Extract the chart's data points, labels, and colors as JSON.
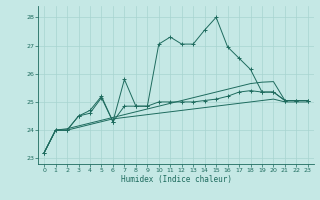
{
  "xlabel": "Humidex (Indice chaleur)",
  "background_color": "#c5e8e5",
  "grid_color": "#a8d4d0",
  "line_color": "#1e6b5e",
  "xlim": [
    -0.5,
    23.5
  ],
  "ylim": [
    22.8,
    28.4
  ],
  "yticks": [
    23,
    24,
    25,
    26,
    27,
    28
  ],
  "xticks": [
    0,
    1,
    2,
    3,
    4,
    5,
    6,
    7,
    8,
    9,
    10,
    11,
    12,
    13,
    14,
    15,
    16,
    17,
    18,
    19,
    20,
    21,
    22,
    23
  ],
  "series": {
    "line1_volatile": [
      23.2,
      24.0,
      24.0,
      24.5,
      24.7,
      25.2,
      24.3,
      25.8,
      24.85,
      24.85,
      27.05,
      27.3,
      27.05,
      27.05,
      27.55,
      28.0,
      26.95,
      26.55,
      26.15,
      25.35,
      25.35,
      25.05,
      25.05,
      25.05
    ],
    "line2_mid": [
      23.2,
      24.0,
      24.0,
      24.5,
      24.6,
      25.15,
      24.3,
      24.85,
      24.85,
      24.85,
      25.0,
      25.0,
      25.0,
      25.0,
      25.05,
      25.1,
      25.2,
      25.35,
      25.4,
      25.35,
      25.35,
      25.05,
      25.05,
      25.05
    ],
    "line3_low": [
      23.2,
      24.0,
      24.0,
      24.1,
      24.2,
      24.3,
      24.4,
      24.45,
      24.5,
      24.55,
      24.6,
      24.65,
      24.7,
      24.75,
      24.8,
      24.85,
      24.9,
      24.95,
      25.0,
      25.05,
      25.1,
      25.0,
      25.0,
      25.0
    ],
    "line4_gradual": [
      23.2,
      24.0,
      24.05,
      24.15,
      24.25,
      24.35,
      24.45,
      24.55,
      24.65,
      24.75,
      24.85,
      24.95,
      25.05,
      25.15,
      25.25,
      25.35,
      25.45,
      25.55,
      25.65,
      25.7,
      25.72,
      25.05,
      25.05,
      25.05
    ]
  }
}
